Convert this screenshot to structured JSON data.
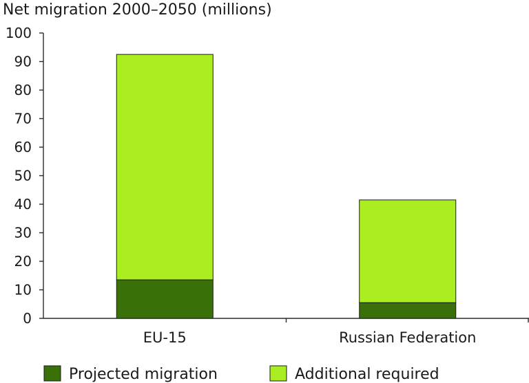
{
  "chart_data": {
    "type": "bar",
    "stacked": true,
    "title": "Net migration 2000–2050 (millions)",
    "xlabel": "",
    "ylabel": "",
    "ylim": [
      0,
      100
    ],
    "yticks": [
      "0",
      "10",
      "20",
      "30",
      "40",
      "50",
      "60",
      "70",
      "80",
      "90",
      "100"
    ],
    "categories": [
      "EU-15",
      "Russian Federation"
    ],
    "series": [
      {
        "name": "Projected migration",
        "values": [
          13.5,
          5.5
        ],
        "color": "#3a700a"
      },
      {
        "name": "Additional required",
        "values": [
          79,
          36
        ],
        "color": "#aaee22"
      }
    ],
    "grid": false,
    "legend": "bottom"
  }
}
